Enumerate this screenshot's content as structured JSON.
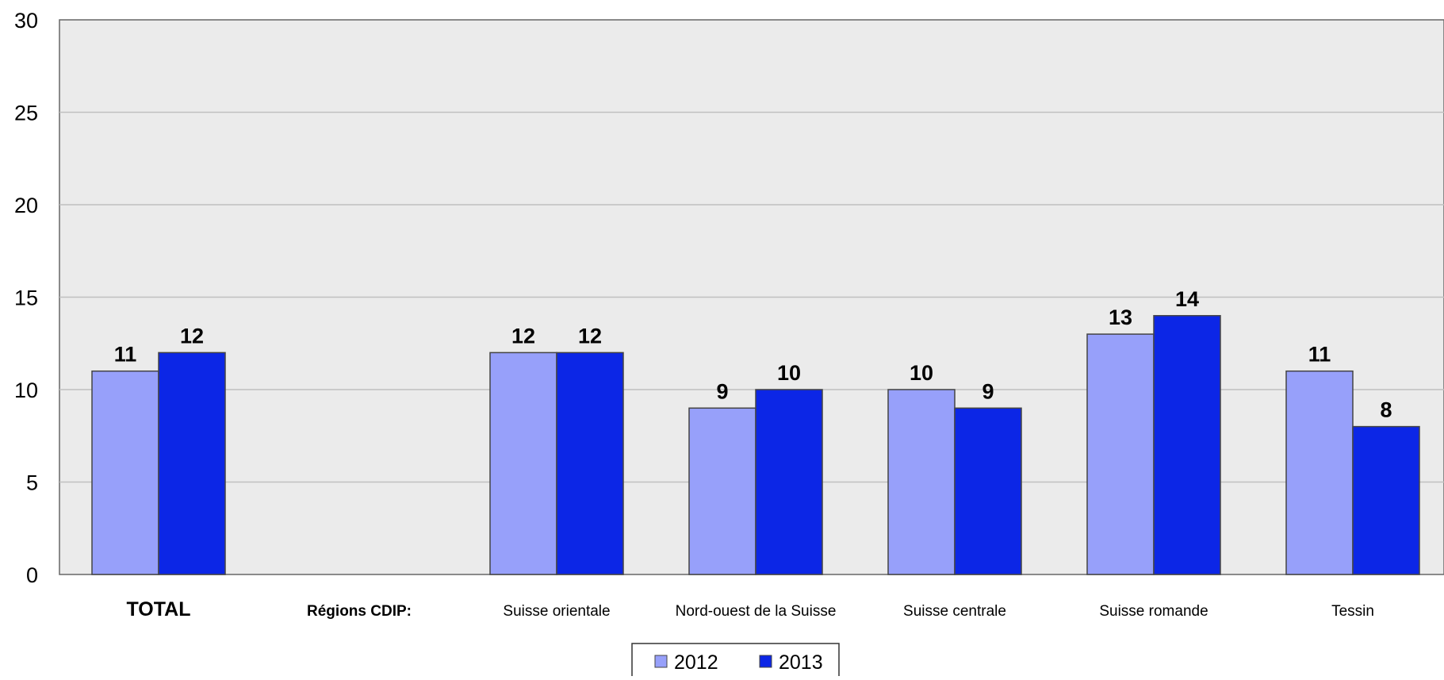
{
  "chart_data": {
    "type": "bar",
    "categories": [
      "TOTAL",
      "Régions CDIP:",
      "Suisse orientale",
      "Nord-ouest de la Suisse",
      "Suisse centrale",
      "Suisse romande",
      "Tessin"
    ],
    "category_styles": [
      "total",
      "header",
      "normal",
      "normal",
      "normal",
      "normal",
      "normal"
    ],
    "series": [
      {
        "name": "2012",
        "color": "#97a0fa",
        "values": [
          11,
          null,
          12,
          9,
          10,
          13,
          11
        ]
      },
      {
        "name": "2013",
        "color": "#0c26e6",
        "values": [
          12,
          null,
          12,
          10,
          9,
          14,
          8
        ]
      }
    ],
    "ylim": [
      0,
      30
    ],
    "yticks": [
      0,
      5,
      10,
      15,
      20,
      25,
      30
    ],
    "grid": true,
    "plot_background": "#ebebeb",
    "legend_position": "bottom-center"
  }
}
